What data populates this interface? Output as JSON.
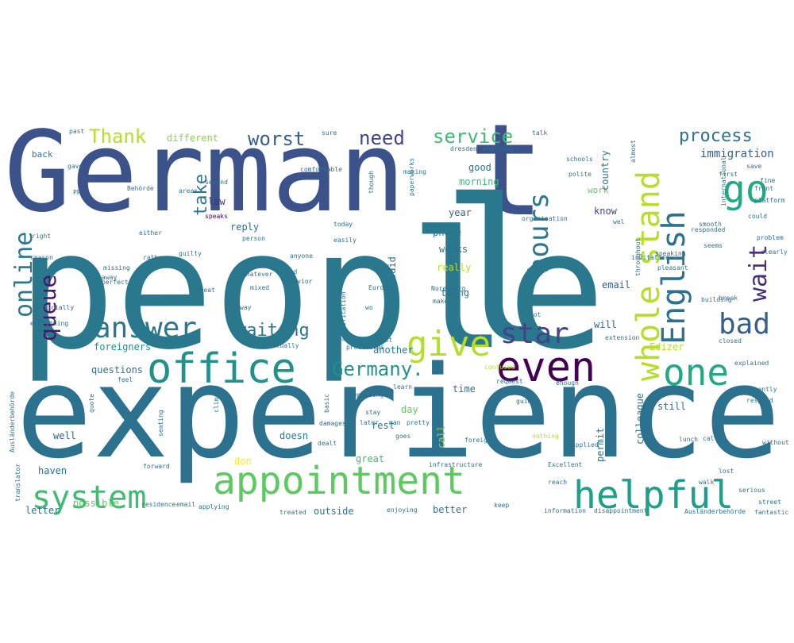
{
  "word_cloud": {
    "words": [
      {
        "text": "people",
        "color": "#2a788e"
      },
      {
        "text": "experience",
        "color": "#2c728e"
      },
      {
        "text": "German",
        "color": "#3b528b"
      },
      {
        "text": "t",
        "color": "#3b528b"
      },
      {
        "text": "l",
        "color": "#2a788e"
      },
      {
        "text": "appointment",
        "color": "#5ec962"
      },
      {
        "text": "office",
        "color": "#21918c"
      },
      {
        "text": "system",
        "color": "#3fbc73"
      },
      {
        "text": "helpful",
        "color": "#1f9e89"
      },
      {
        "text": "English",
        "color": "#2c728e"
      },
      {
        "text": "whole stand",
        "color": "#b5de2b"
      },
      {
        "text": "one",
        "color": "#22a884"
      },
      {
        "text": "even",
        "color": "#440154"
      },
      {
        "text": "go",
        "color": "#22a884"
      },
      {
        "text": "answer",
        "color": "#2a788e"
      },
      {
        "text": "give",
        "color": "#b5de2b"
      },
      {
        "text": "star",
        "color": "#414487"
      },
      {
        "text": "bad",
        "color": "#355f8d"
      },
      {
        "text": "hours",
        "color": "#2a788e"
      },
      {
        "text": "wait",
        "color": "#472d7b"
      },
      {
        "text": "queue",
        "color": "#48186a"
      },
      {
        "text": "online",
        "color": "#2a788e"
      },
      {
        "text": "Germany.",
        "color": "#21918c"
      },
      {
        "text": "waiting",
        "color": "#2a788e"
      },
      {
        "text": "need",
        "color": "#414487"
      },
      {
        "text": "service",
        "color": "#3fbc73"
      },
      {
        "text": "worst",
        "color": "#355f8d"
      },
      {
        "text": "Thank",
        "color": "#b5de2b"
      },
      {
        "text": "process",
        "color": "#2c728e"
      },
      {
        "text": "immigration",
        "color": "#355f8d"
      },
      {
        "text": "take",
        "color": "#2a788e"
      },
      {
        "text": "different",
        "color": "#86d549"
      },
      {
        "text": "law",
        "color": "#472d7b"
      },
      {
        "text": "reply",
        "color": "#2c728e"
      },
      {
        "text": "good",
        "color": "#2c728e"
      },
      {
        "text": "morning",
        "color": "#3fbc73"
      },
      {
        "text": "work",
        "color": "#5ec962"
      },
      {
        "text": "country",
        "color": "#2a788e"
      },
      {
        "text": "know",
        "color": "#414487"
      },
      {
        "text": "year",
        "color": "#355f8d"
      },
      {
        "text": "phone",
        "color": "#2a788e"
      },
      {
        "text": "weeks",
        "color": "#2c728e"
      },
      {
        "text": "really",
        "color": "#b5de2b"
      },
      {
        "text": "said",
        "color": "#2a788e"
      },
      {
        "text": "thing",
        "color": "#2c728e"
      },
      {
        "text": "email",
        "color": "#355f8d"
      },
      {
        "text": "will",
        "color": "#355f8d"
      },
      {
        "text": "Edizer",
        "color": "#b5de2b"
      },
      {
        "text": "foreigners",
        "color": "#21918c"
      },
      {
        "text": "questions",
        "color": "#2c728e"
      },
      {
        "text": "another",
        "color": "#2a788e"
      },
      {
        "text": "time",
        "color": "#2c728e"
      },
      {
        "text": "day",
        "color": "#5ec962"
      },
      {
        "text": "rest",
        "color": "#2c728e"
      },
      {
        "text": "doesn",
        "color": "#2a788e"
      },
      {
        "text": "call",
        "color": "#86d549"
      },
      {
        "text": "permit",
        "color": "#2a788e"
      },
      {
        "text": "colleague",
        "color": "#2c728e"
      },
      {
        "text": "still",
        "color": "#2c728e"
      },
      {
        "text": "well",
        "color": "#355f8d"
      },
      {
        "text": "haven",
        "color": "#2c728e"
      },
      {
        "text": "great",
        "color": "#3fbc73"
      },
      {
        "text": "don",
        "color": "#fde725"
      },
      {
        "text": "letter",
        "color": "#2c728e"
      },
      {
        "text": "possible",
        "color": "#5ec962"
      },
      {
        "text": "outside",
        "color": "#2c728e"
      },
      {
        "text": "better",
        "color": "#2a788e"
      },
      {
        "text": "back",
        "color": "#2a788e"
      },
      {
        "text": "comfortable",
        "color": "#2c728e"
      },
      {
        "text": "making",
        "color": "#2c728e"
      },
      {
        "text": "polite",
        "color": "#2c728e"
      },
      {
        "text": "speaks",
        "color": "#440154"
      },
      {
        "text": "person",
        "color": "#2c728e"
      },
      {
        "text": "anyone",
        "color": "#2c728e"
      },
      {
        "text": "hard",
        "color": "#2c728e"
      },
      {
        "text": "behavior",
        "color": "#2c728e"
      },
      {
        "text": "Nuremberg",
        "color": "#2c728e"
      },
      {
        "text": "make",
        "color": "#2c728e"
      },
      {
        "text": "procedures",
        "color": "#2c728e"
      },
      {
        "text": "confused",
        "color": "#b5de2b"
      },
      {
        "text": "request",
        "color": "#2c728e"
      },
      {
        "text": "enough",
        "color": "#2c728e"
      },
      {
        "text": "learn",
        "color": "#2c728e"
      },
      {
        "text": "depending",
        "color": "#2c728e"
      },
      {
        "text": "guided",
        "color": "#2c728e"
      },
      {
        "text": "goes",
        "color": "#2c728e"
      },
      {
        "text": "foreign",
        "color": "#2c728e"
      },
      {
        "text": "nothing",
        "color": "#b5de2b"
      },
      {
        "text": "applied",
        "color": "#2c728e"
      },
      {
        "text": "infrastructure",
        "color": "#2c728e"
      },
      {
        "text": "Excellent",
        "color": "#2c728e"
      },
      {
        "text": "reach",
        "color": "#2c728e"
      },
      {
        "text": "information",
        "color": "#2c728e"
      },
      {
        "text": "disappointment",
        "color": "#2c728e"
      },
      {
        "text": "keep",
        "color": "#2c728e"
      },
      {
        "text": "enjoying",
        "color": "#2c728e"
      },
      {
        "text": "treated",
        "color": "#2c728e"
      },
      {
        "text": "applying",
        "color": "#2c728e"
      },
      {
        "text": "residence",
        "color": "#2c728e"
      },
      {
        "text": "email",
        "color": "#2c728e"
      },
      {
        "text": "forward",
        "color": "#2c728e"
      },
      {
        "text": "translator",
        "color": "#2c728e"
      },
      {
        "text": "Ausländerbehörde",
        "color": "#2c728e"
      },
      {
        "text": "fantastic",
        "color": "#2c728e"
      },
      {
        "text": "walk",
        "color": "#2c728e"
      },
      {
        "text": "serious",
        "color": "#2c728e"
      },
      {
        "text": "lunch",
        "color": "#2c728e"
      },
      {
        "text": "called",
        "color": "#2c728e"
      },
      {
        "text": "without",
        "color": "#2c728e"
      },
      {
        "text": "respond",
        "color": "#2c728e"
      },
      {
        "text": "recently",
        "color": "#2c728e"
      },
      {
        "text": "explained",
        "color": "#2c728e"
      },
      {
        "text": "closed",
        "color": "#2c728e"
      },
      {
        "text": "extension",
        "color": "#2c728e"
      },
      {
        "text": "actually",
        "color": "#2c728e"
      },
      {
        "text": "pleasant",
        "color": "#2c728e"
      },
      {
        "text": "building",
        "color": "#2c728e"
      },
      {
        "text": "clearly",
        "color": "#2c728e"
      },
      {
        "text": "problem",
        "color": "#2c728e"
      },
      {
        "text": "responded",
        "color": "#2c728e"
      },
      {
        "text": "seems",
        "color": "#2c728e"
      },
      {
        "text": "speaking",
        "color": "#2c728e"
      },
      {
        "text": "invitation",
        "color": "#2c728e"
      },
      {
        "text": "throughout",
        "color": "#2c728e"
      },
      {
        "text": "platform",
        "color": "#2c728e"
      },
      {
        "text": "front",
        "color": "#2c728e"
      },
      {
        "text": "first",
        "color": "#2c728e"
      },
      {
        "text": "almost",
        "color": "#2c728e"
      },
      {
        "text": "international",
        "color": "#2c728e"
      },
      {
        "text": "dresden",
        "color": "#2c728e"
      },
      {
        "text": "anything",
        "color": "#2c728e"
      },
      {
        "text": "talk",
        "color": "#2c728e"
      },
      {
        "text": "sure",
        "color": "#2c728e"
      },
      {
        "text": "past",
        "color": "#2c728e"
      },
      {
        "text": "either",
        "color": "#2c728e"
      },
      {
        "text": "right",
        "color": "#2c728e"
      },
      {
        "text": "reason",
        "color": "#2c728e"
      },
      {
        "text": "missing",
        "color": "#2c728e"
      },
      {
        "text": "perfect",
        "color": "#2c728e"
      },
      {
        "text": "officially",
        "color": "#2c728e"
      },
      {
        "text": "everything",
        "color": "#2c728e"
      },
      {
        "text": "feel",
        "color": "#2c728e"
      },
      {
        "text": "quote",
        "color": "#2c728e"
      },
      {
        "text": "climate",
        "color": "#2c728e"
      },
      {
        "text": "matters",
        "color": "#2c728e"
      },
      {
        "text": "seating",
        "color": "#2c728e"
      },
      {
        "text": "Ausländerbehörde",
        "color": "#2c728e"
      },
      {
        "text": "mixed",
        "color": "#2c728e"
      },
      {
        "text": "repeat",
        "color": "#2c728e"
      },
      {
        "text": "whatever",
        "color": "#2c728e"
      },
      {
        "text": "guilty",
        "color": "#2c728e"
      },
      {
        "text": "rather",
        "color": "#2c728e"
      },
      {
        "text": "away",
        "color": "#2c728e"
      },
      {
        "text": "areas",
        "color": "#2c728e"
      },
      {
        "text": "second",
        "color": "#2c728e"
      },
      {
        "text": "Behörde",
        "color": "#2c728e"
      },
      {
        "text": "PR",
        "color": "#2c728e"
      },
      {
        "text": "easily",
        "color": "#2c728e"
      },
      {
        "text": "today",
        "color": "#2c728e"
      },
      {
        "text": "paperworks",
        "color": "#2c728e"
      },
      {
        "text": "schools",
        "color": "#2c728e"
      },
      {
        "text": "though",
        "color": "#2c728e"
      },
      {
        "text": "organisation",
        "color": "#2c728e"
      },
      {
        "text": "certification",
        "color": "#2c728e"
      },
      {
        "text": "Europe",
        "color": "#2c728e"
      },
      {
        "text": "fast",
        "color": "#2c728e"
      },
      {
        "text": "basic",
        "color": "#2c728e"
      },
      {
        "text": "dealt",
        "color": "#2c728e"
      },
      {
        "text": "damages",
        "color": "#2c728e"
      },
      {
        "text": "stay",
        "color": "#2c728e"
      },
      {
        "text": "later",
        "color": "#2c728e"
      },
      {
        "text": "man",
        "color": "#2c728e"
      },
      {
        "text": "pretty",
        "color": "#2c728e"
      },
      {
        "text": "lost",
        "color": "#2c728e"
      },
      {
        "text": "smooth",
        "color": "#2c728e"
      },
      {
        "text": "fine",
        "color": "#2c728e"
      },
      {
        "text": "way",
        "color": "#2c728e"
      },
      {
        "text": "got",
        "color": "#2c728e"
      },
      {
        "text": "wel",
        "color": "#2c728e"
      },
      {
        "text": "save",
        "color": "#2c728e"
      },
      {
        "text": "gave",
        "color": "#2c728e"
      },
      {
        "text": "could",
        "color": "#2c728e"
      },
      {
        "text": "break",
        "color": "#2c728e"
      },
      {
        "text": "street",
        "color": "#2c728e"
      },
      {
        "text": "lot",
        "color": "#2c728e"
      },
      {
        "text": "wo",
        "color": "#2c728e"
      }
    ]
  }
}
